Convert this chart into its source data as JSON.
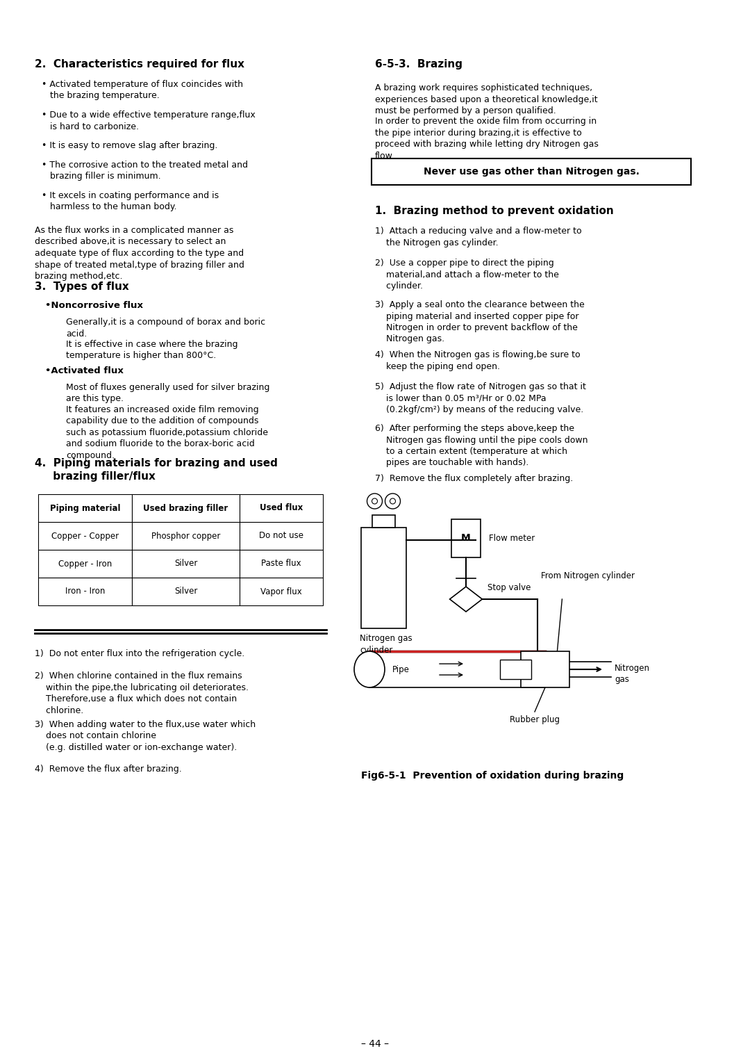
{
  "bg_color": "#ffffff",
  "page_width": 10.8,
  "page_height": 15.25,
  "section2_title": "2.  Characteristics required for flux",
  "section3_title": "3.  Types of flux",
  "section4_title": "4.  Piping materials for brazing and used\n     brazing filler/flux",
  "table_headers": [
    "Piping material",
    "Used brazing filler",
    "Used flux"
  ],
  "table_rows": [
    [
      "Copper - Copper",
      "Phosphor copper",
      "Do not use"
    ],
    [
      "Copper - Iron",
      "Silver",
      "Paste flux"
    ],
    [
      "Iron - Iron",
      "Silver",
      "Vapor flux"
    ]
  ],
  "section_notes": [
    "1)  Do not enter flux into the refrigeration cycle.",
    "2)  When chlorine contained in the flux remains\n    within the pipe,the lubricating oil deteriorates.\n    Therefore,use a flux which does not contain\n    chlorine.",
    "3)  When adding water to the flux,use water which\n    does not contain chlorine\n    (e.g. distilled water or ion-exchange water).",
    "4)  Remove the flux after brazing."
  ],
  "section_brazing_title": "6-5-3.  Brazing",
  "section_brazing_para1": "A brazing work requires sophisticated techniques,\nexperiences based upon a theoretical knowledge,it\nmust be performed by a person qualified.",
  "section_brazing_para2": "In order to prevent the oxide film from occurring in\nthe pipe interior during brazing,it is effective to\nproceed with brazing while letting dry Nitrogen gas\nflow.",
  "warning_box": "Never use gas other than Nitrogen gas.",
  "section_prevent_title": "1.  Brazing method to prevent oxidation",
  "section_prevent_steps": [
    "1)  Attach a reducing valve and a flow-meter to\n    the Nitrogen gas cylinder.",
    "2)  Use a copper pipe to direct the piping\n    material,and attach a flow-meter to the\n    cylinder.",
    "3)  Apply a seal onto the clearance between the\n    piping material and inserted copper pipe for\n    Nitrogen in order to prevent backflow of the\n    Nitrogen gas.",
    "4)  When the Nitrogen gas is flowing,be sure to\n    keep the piping end open.",
    "5)  Adjust the flow rate of Nitrogen gas so that it\n    is lower than 0.05 m³/Hr or 0.02 MPa\n    (0.2kgf/cm²) by means of the reducing valve.",
    "6)  After performing the steps above,keep the\n    Nitrogen gas flowing until the pipe cools down\n    to a certain extent (temperature at which\n    pipes are touchable with hands).",
    "7)  Remove the flux completely after brazing."
  ],
  "fig_caption": "Fig6-5-1  Prevention of oxidation during brazing",
  "page_num": "– 44 –"
}
